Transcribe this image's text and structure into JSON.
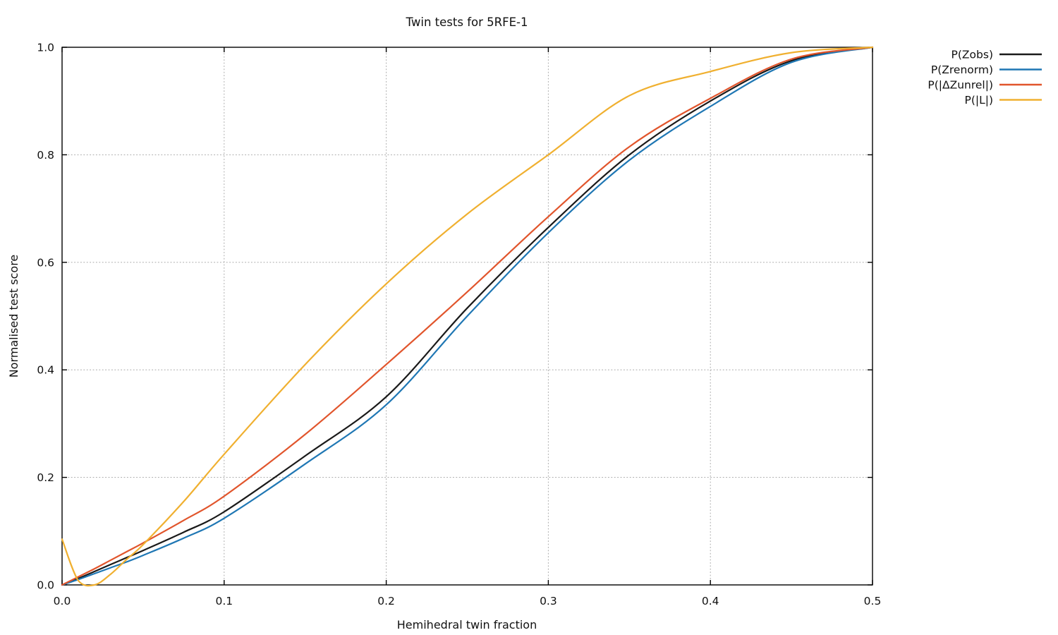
{
  "chart_data": {
    "type": "line",
    "title": "Twin tests for 5RFE-1",
    "xlabel": "Hemihedral twin fraction",
    "ylabel": "Normalised test score",
    "xlim": [
      0.0,
      0.5
    ],
    "ylim": [
      0.0,
      1.0
    ],
    "xticks": [
      0.0,
      0.1,
      0.2,
      0.3,
      0.4,
      0.5
    ],
    "yticks": [
      0.0,
      0.2,
      0.4,
      0.6,
      0.8,
      1.0
    ],
    "grid": "dotted",
    "grid_color": "#b0b0b0",
    "legend_position": "outside-right-top",
    "axis_color": "#000000",
    "x": [
      0.0,
      0.01,
      0.02,
      0.03,
      0.04,
      0.05,
      0.075,
      0.1,
      0.15,
      0.2,
      0.25,
      0.3,
      0.35,
      0.4,
      0.45,
      0.5
    ],
    "series": [
      {
        "name": "P(Zobs)",
        "color": "#1a1a1a",
        "values": [
          0.0,
          0.012,
          0.025,
          0.038,
          0.051,
          0.064,
          0.098,
          0.136,
          0.24,
          0.35,
          0.515,
          0.665,
          0.8,
          0.9,
          0.975,
          1.0
        ]
      },
      {
        "name": "P(Zrenorm)",
        "color": "#1f77b4",
        "values": [
          0.0,
          0.01,
          0.021,
          0.032,
          0.043,
          0.055,
          0.087,
          0.124,
          0.225,
          0.335,
          0.5,
          0.655,
          0.79,
          0.89,
          0.972,
          1.0
        ]
      },
      {
        "name": "P(|ΔZunrel|)",
        "color": "#e1552c",
        "values": [
          0.0,
          0.015,
          0.03,
          0.046,
          0.062,
          0.078,
          0.12,
          0.165,
          0.28,
          0.41,
          0.545,
          0.685,
          0.815,
          0.905,
          0.978,
          1.0
        ]
      },
      {
        "name": "P(|L|)",
        "color": "#f0b030",
        "values": [
          0.085,
          0.008,
          0.0,
          0.02,
          0.048,
          0.075,
          0.155,
          0.243,
          0.41,
          0.56,
          0.69,
          0.8,
          0.91,
          0.955,
          0.99,
          1.0
        ]
      }
    ]
  }
}
